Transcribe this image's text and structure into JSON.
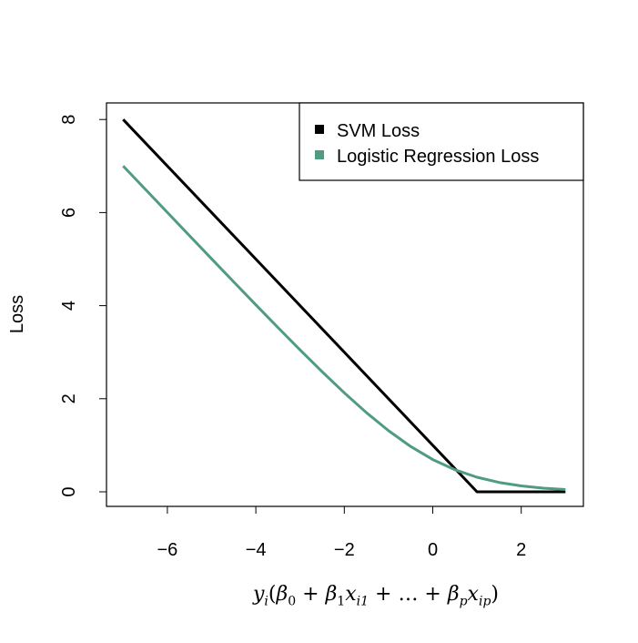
{
  "chart_data": {
    "type": "line",
    "xlabel": "y_i(β_0 + β_1 x_i1 + ... + β_p x_ip)",
    "xlabel_parts": {
      "y": "y",
      "i": "i",
      "b0": "β",
      "s0": "0",
      "b1": "β",
      "s1": "1",
      "x1": "x",
      "si1": "i1",
      "dots": "…",
      "bp": "β",
      "sp": "p",
      "xp": "x",
      "sip": "ip"
    },
    "ylabel": "Loss",
    "xlim": [
      -7,
      3
    ],
    "ylim": [
      0,
      8
    ],
    "xticks": [
      -6,
      -4,
      -2,
      0,
      2
    ],
    "xtick_labels": [
      "−6",
      "−4",
      "−2",
      "0",
      "2"
    ],
    "yticks": [
      0,
      2,
      4,
      6,
      8
    ],
    "ytick_labels": [
      "0",
      "2",
      "4",
      "6",
      "8"
    ],
    "grid": false,
    "legend": {
      "position": "top-right",
      "entries": [
        "SVM Loss",
        "Logistic Regression Loss"
      ]
    },
    "series": [
      {
        "name": "SVM Loss",
        "color": "#000000",
        "x": [
          -7,
          1,
          3
        ],
        "y": [
          8,
          0,
          0
        ]
      },
      {
        "name": "Logistic Regression Loss",
        "color": "#4f9b84",
        "x": [
          -7,
          -6.5,
          -6,
          -5.5,
          -5,
          -4.5,
          -4,
          -3.5,
          -3,
          -2.5,
          -2,
          -1.5,
          -1,
          -0.5,
          0,
          0.5,
          1,
          1.5,
          2,
          2.5,
          3
        ],
        "y": [
          7.0009,
          6.5015,
          6.0025,
          5.5041,
          5.0067,
          4.5111,
          4.0181,
          3.5297,
          3.0486,
          2.5789,
          2.1269,
          1.7014,
          1.3133,
          0.9741,
          0.6931,
          0.4741,
          0.3133,
          0.2014,
          0.1269,
          0.0789,
          0.0486
        ]
      }
    ]
  }
}
